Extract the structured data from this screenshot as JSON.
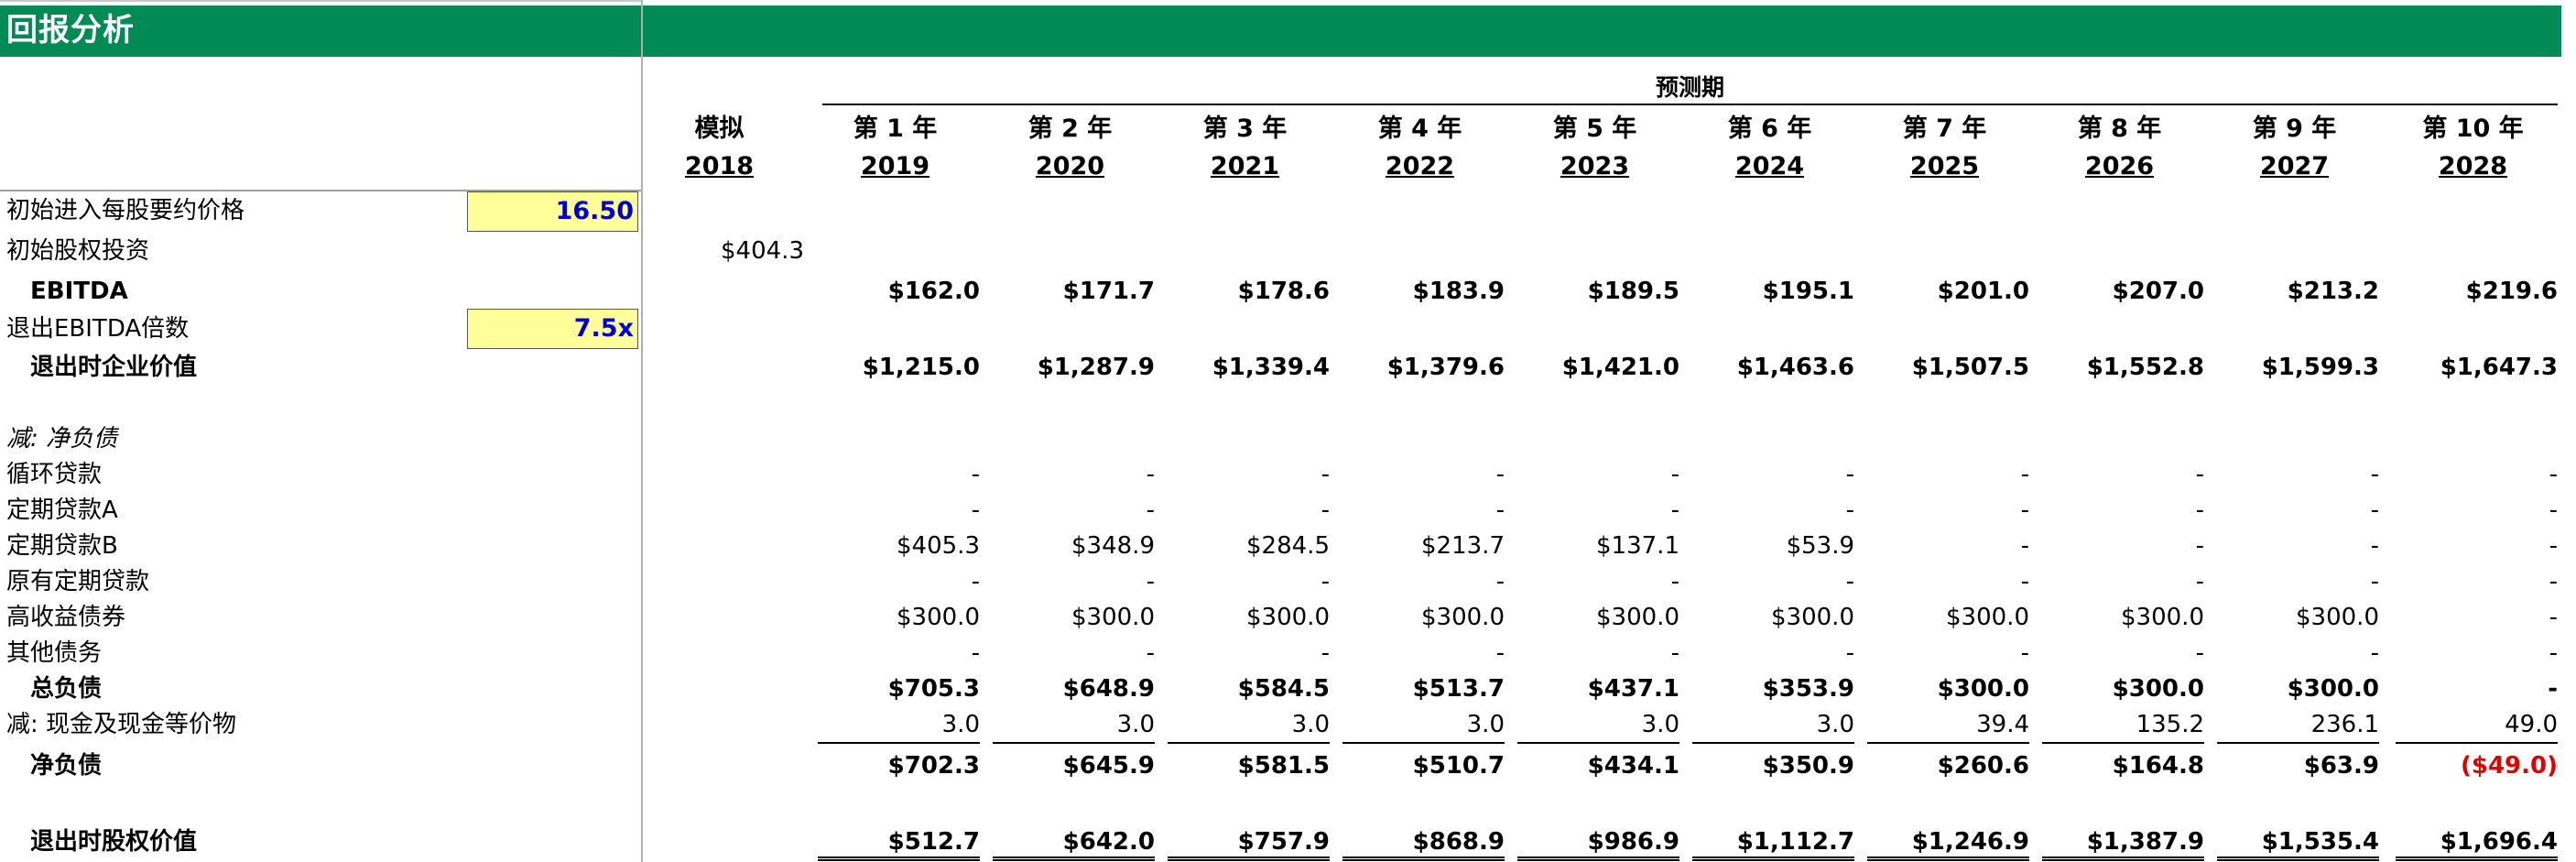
{
  "title": "回报分析",
  "projection_label": "预测期",
  "columns": [
    {
      "top": "模拟",
      "year": "2018"
    },
    {
      "top": "第 1 年",
      "year": "2019"
    },
    {
      "top": "第 2 年",
      "year": "2020"
    },
    {
      "top": "第 3 年",
      "year": "2021"
    },
    {
      "top": "第 4 年",
      "year": "2022"
    },
    {
      "top": "第 5 年",
      "year": "2023"
    },
    {
      "top": "第 6 年",
      "year": "2024"
    },
    {
      "top": "第 7 年",
      "year": "2025"
    },
    {
      "top": "第 8 年",
      "year": "2026"
    },
    {
      "top": "第 9 年",
      "year": "2027"
    },
    {
      "top": "第 10 年",
      "year": "2028"
    }
  ],
  "inputs": {
    "entry_price_label": "初始进入每股要约价格",
    "entry_price_value": "16.50",
    "exit_multiple_label": "退出EBITDA倍数",
    "exit_multiple_value": "7.5x"
  },
  "rows": [
    {
      "key": "initial_equity",
      "label": "初始股权投资",
      "style": "normal",
      "values": [
        "$404.3",
        "",
        "",
        "",
        "",
        "",
        "",
        "",
        "",
        "",
        ""
      ]
    },
    {
      "key": "ebitda",
      "label": "EBITDA",
      "style": "bold",
      "values": [
        "",
        "$162.0",
        "$171.7",
        "$178.6",
        "$183.9",
        "$189.5",
        "$195.1",
        "$201.0",
        "$207.0",
        "$213.2",
        "$219.6"
      ]
    },
    {
      "key": "exit_ev",
      "label": "退出时企业价值",
      "style": "bold",
      "values": [
        "",
        "$1,215.0",
        "$1,287.9",
        "$1,339.4",
        "$1,379.6",
        "$1,421.0",
        "$1,463.6",
        "$1,507.5",
        "$1,552.8",
        "$1,599.3",
        "$1,647.3"
      ]
    },
    {
      "key": "less_net_debt",
      "label": "减: 净负债",
      "style": "italic",
      "values": [
        "",
        "",
        "",
        "",
        "",
        "",
        "",
        "",
        "",
        "",
        ""
      ]
    },
    {
      "key": "revolver",
      "label": "循环贷款",
      "style": "normal",
      "values": [
        "",
        "-",
        "-",
        "-",
        "-",
        "-",
        "-",
        "-",
        "-",
        "-",
        "-"
      ]
    },
    {
      "key": "term_loan_a",
      "label": "定期贷款A",
      "style": "normal",
      "values": [
        "",
        "-",
        "-",
        "-",
        "-",
        "-",
        "-",
        "-",
        "-",
        "-",
        "-"
      ]
    },
    {
      "key": "term_loan_b",
      "label": "定期贷款B",
      "style": "normal",
      "values": [
        "",
        "$405.3",
        "$348.9",
        "$284.5",
        "$213.7",
        "$137.1",
        "$53.9",
        "-",
        "-",
        "-",
        "-"
      ]
    },
    {
      "key": "existing_term_loan",
      "label": "原有定期贷款",
      "style": "normal",
      "values": [
        "",
        "-",
        "-",
        "-",
        "-",
        "-",
        "-",
        "-",
        "-",
        "-",
        "-"
      ]
    },
    {
      "key": "high_yield",
      "label": "高收益债券",
      "style": "normal",
      "values": [
        "",
        "$300.0",
        "$300.0",
        "$300.0",
        "$300.0",
        "$300.0",
        "$300.0",
        "$300.0",
        "$300.0",
        "$300.0",
        "-"
      ]
    },
    {
      "key": "other_debt",
      "label": "其他债务",
      "style": "normal",
      "values": [
        "",
        "-",
        "-",
        "-",
        "-",
        "-",
        "-",
        "-",
        "-",
        "-",
        "-"
      ]
    },
    {
      "key": "total_debt",
      "label": "总负债",
      "style": "bold",
      "values": [
        "",
        "$705.3",
        "$648.9",
        "$584.5",
        "$513.7",
        "$437.1",
        "$353.9",
        "$300.0",
        "$300.0",
        "$300.0",
        "-"
      ]
    },
    {
      "key": "less_cash",
      "label": "减: 现金及现金等价物",
      "style": "normal",
      "values": [
        "",
        "3.0",
        "3.0",
        "3.0",
        "3.0",
        "3.0",
        "3.0",
        "39.4",
        "135.2",
        "236.1",
        "49.0"
      ]
    },
    {
      "key": "net_debt",
      "label": "净负债",
      "style": "bold",
      "values": [
        "",
        "$702.3",
        "$645.9",
        "$581.5",
        "$510.7",
        "$434.1",
        "$350.9",
        "$260.6",
        "$164.8",
        "$63.9",
        "($49.0)"
      ]
    },
    {
      "key": "exit_equity",
      "label": "退出时股权价值",
      "style": "bold",
      "values": [
        "",
        "$512.7",
        "$642.0",
        "$757.9",
        "$868.9",
        "$986.9",
        "$1,112.7",
        "$1,246.9",
        "$1,387.9",
        "$1,535.4",
        "$1,696.4"
      ]
    }
  ],
  "colors": {
    "banner": "#008a56",
    "input_fill": "#ffff99",
    "input_text": "#0000cc",
    "negative": "#e00000"
  }
}
